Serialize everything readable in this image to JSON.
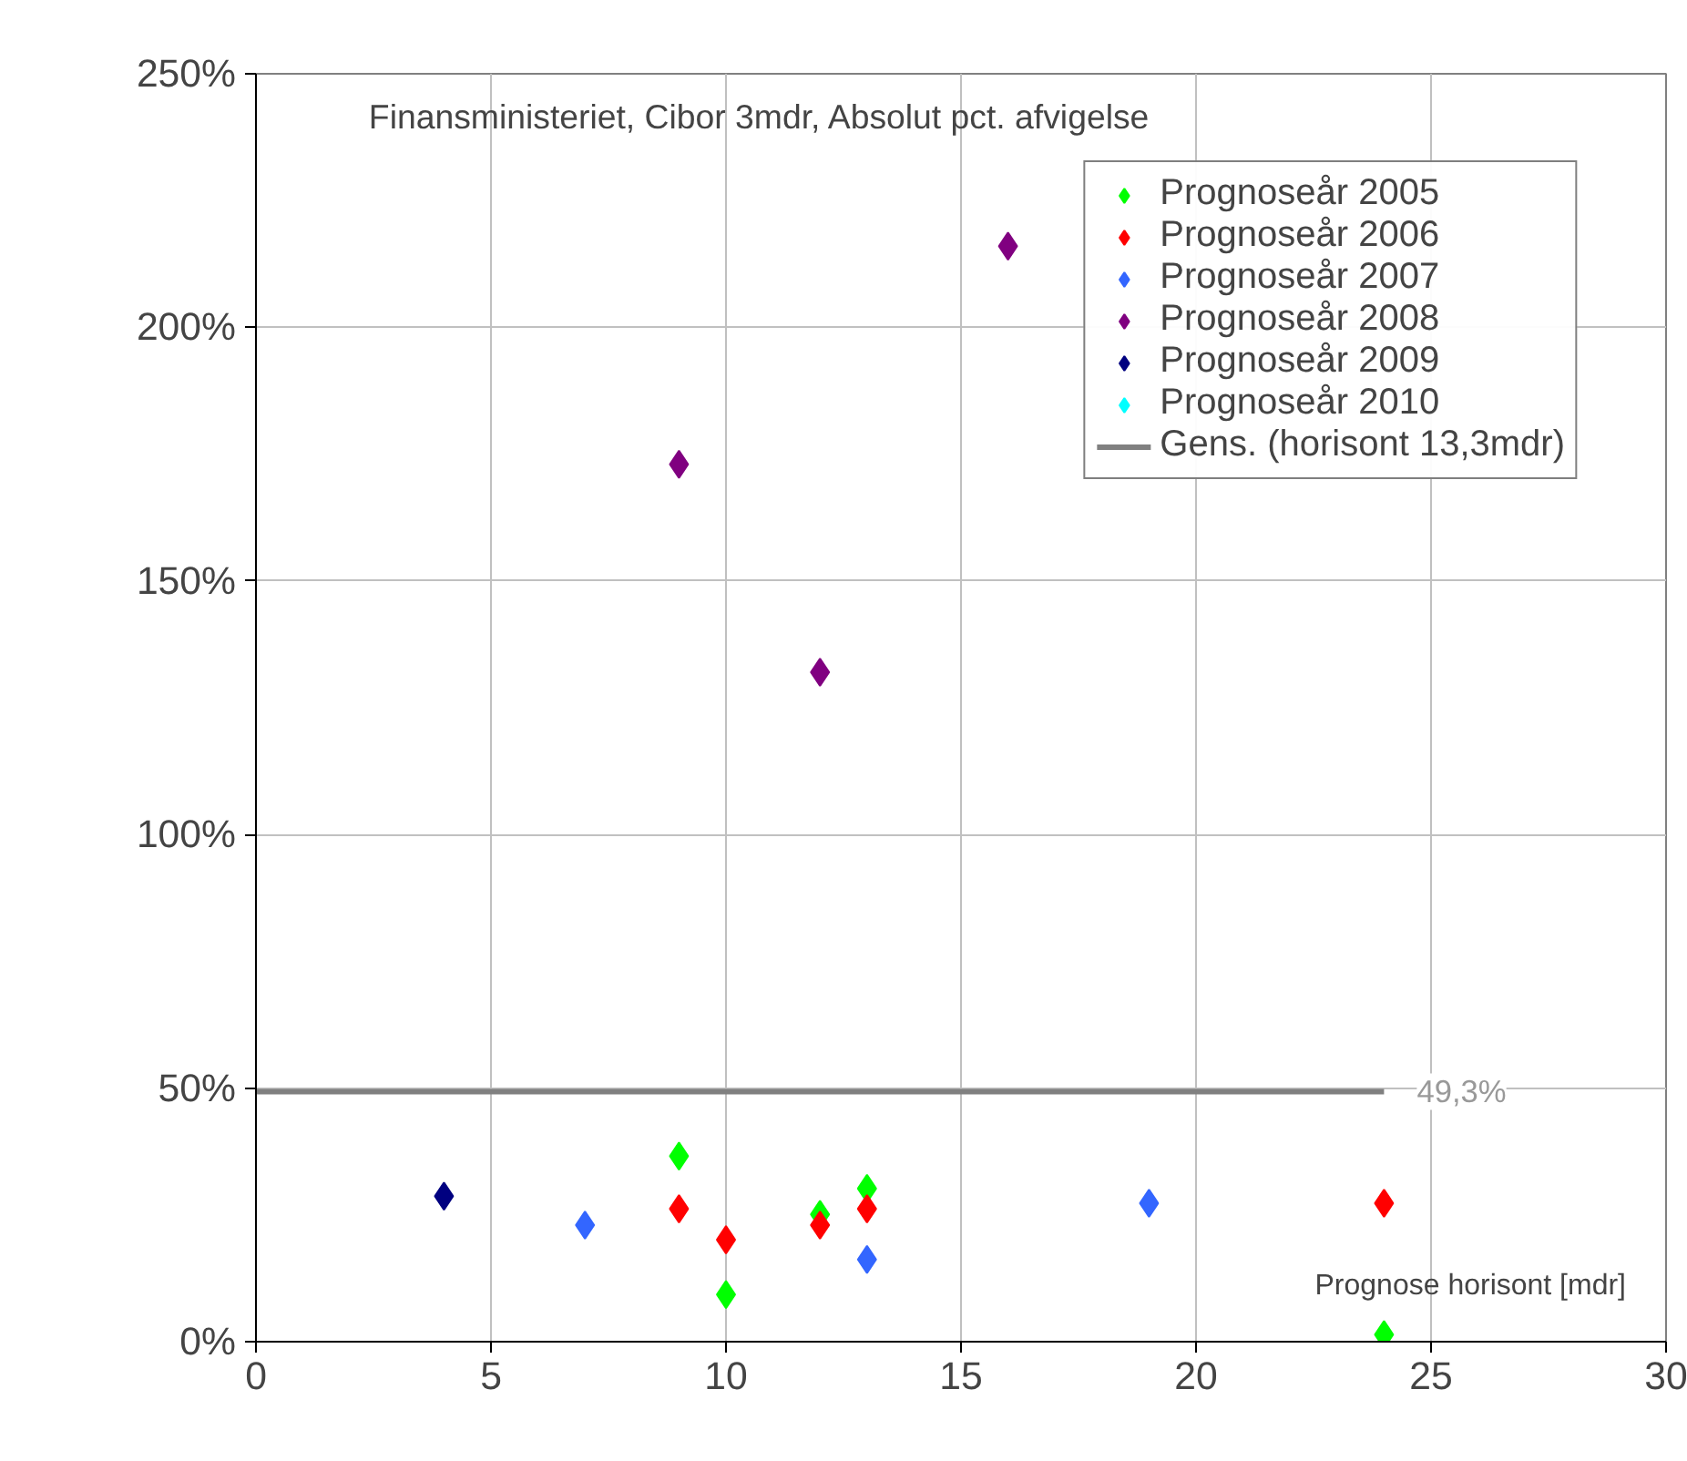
{
  "chart_data": {
    "type": "scatter",
    "title": "Finansministeriet, Cibor 3mdr, Absolut pct. afvigelse",
    "xlabel": "Prognose horisont [mdr]",
    "xlim": [
      0,
      30
    ],
    "xticks": [
      0,
      5,
      10,
      15,
      20,
      25,
      30
    ],
    "ylim": [
      0,
      250
    ],
    "yticks": [
      {
        "value": 0,
        "label": "0%"
      },
      {
        "value": 50,
        "label": "50%"
      },
      {
        "value": 100,
        "label": "100%"
      },
      {
        "value": 150,
        "label": "150%"
      },
      {
        "value": 200,
        "label": "200%"
      },
      {
        "value": 250,
        "label": "250%"
      }
    ],
    "grid": true,
    "legend": "top right",
    "marker": "diamond",
    "series": [
      {
        "name": "Prognoseår 2005",
        "color": "#00ff00",
        "x": [
          9,
          10,
          12,
          13,
          24
        ],
        "values": [
          36.6,
          9.3,
          25.1,
          30.2,
          1.4
        ]
      },
      {
        "name": "Prognoseår 2006",
        "color": "#ff0000",
        "x": [
          9,
          10,
          12,
          13,
          24
        ],
        "values": [
          26.2,
          20.1,
          23,
          26.2,
          27.3
        ]
      },
      {
        "name": "Prognoseår 2007",
        "color": "#3366ff",
        "x": [
          7,
          13,
          19
        ],
        "values": [
          23,
          16.2,
          27.3
        ]
      },
      {
        "name": "Prognoseår 2008",
        "color": "#800080",
        "x": [
          9,
          12,
          16
        ],
        "values": [
          173,
          132,
          216
        ]
      },
      {
        "name": "Prognoseår 2009",
        "color": "#000080",
        "x": [
          4
        ],
        "values": [
          28.7
        ]
      },
      {
        "name": "Prognoseår 2010",
        "color": "#00ffff"
      },
      {
        "name": "Gens. (horisont 13,3mdr)",
        "type": "line",
        "marker": "none",
        "color": "#808080",
        "x": [
          0,
          24
        ],
        "values": [
          49.3,
          49.3
        ]
      }
    ],
    "annotations": [
      {
        "text": "49,3%",
        "x": 24,
        "y": 49.3
      }
    ]
  }
}
